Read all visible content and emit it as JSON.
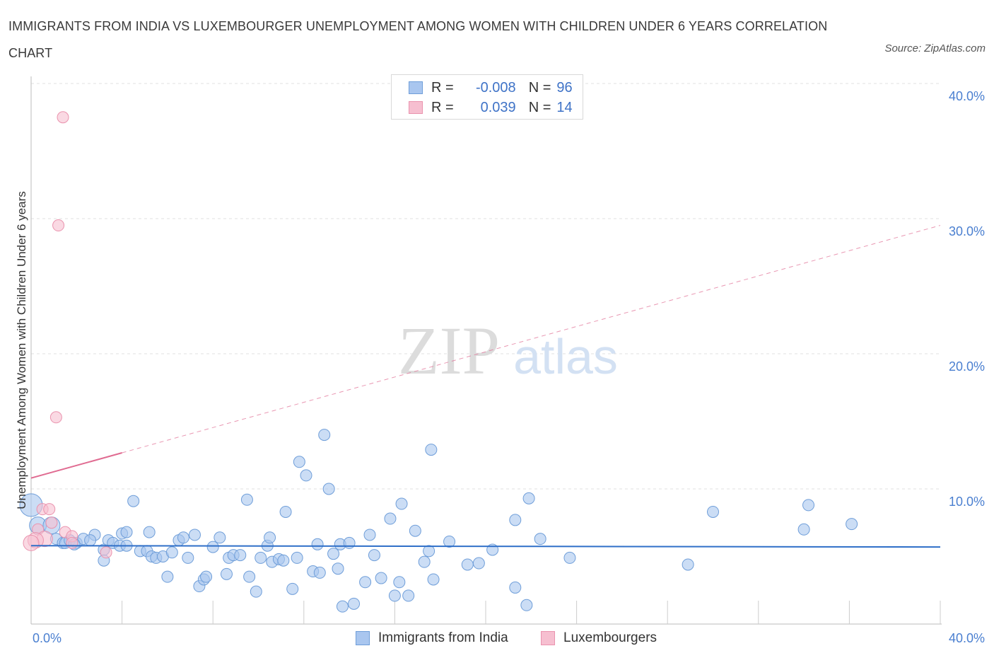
{
  "title": "IMMIGRANTS FROM INDIA VS LUXEMBOURGER UNEMPLOYMENT AMONG WOMEN WITH CHILDREN UNDER 6 YEARS CORRELATION CHART",
  "source": "Source: ZipAtlas.com",
  "watermark": {
    "zip": "ZIP",
    "atlas": "atlas"
  },
  "legend": {
    "rows": [
      {
        "r_label": "R =",
        "r_value": "-0.008",
        "n_label": "N =",
        "n_value": "96"
      },
      {
        "r_label": "R =",
        "r_value": "0.039",
        "n_label": "N =",
        "n_value": "14"
      }
    ]
  },
  "bottom_legend": {
    "series1": "Immigrants from India",
    "series2": "Luxembourgers"
  },
  "colors": {
    "india_fill": "#a9c6ef",
    "india_stroke": "#6f9ed9",
    "india_line": "#2f6fc8",
    "lux_fill": "#f6bfd0",
    "lux_stroke": "#ea93ae",
    "lux_line": "#e06b91",
    "grid": "#e2e2e2",
    "axis_text": "#4a7fd0"
  },
  "chart_data": {
    "type": "scatter",
    "title": "IMMIGRANTS FROM INDIA VS LUXEMBOURGER UNEMPLOYMENT AMONG WOMEN WITH CHILDREN UNDER 6 YEARS CORRELATION CHART",
    "xlabel": "",
    "ylabel": "Unemployment Among Women with Children Under 6 years",
    "xlim": [
      0,
      40
    ],
    "ylim": [
      0,
      40
    ],
    "x_tick_labels": [
      "0.0%",
      "40.0%"
    ],
    "y_tick_labels": [
      "10.0%",
      "20.0%",
      "30.0%",
      "40.0%"
    ],
    "y_ticks": [
      10,
      20,
      30,
      40
    ],
    "series": [
      {
        "name": "Immigrants from India",
        "r": -0.008,
        "n": 96,
        "trend": {
          "x0": 0,
          "y0": 5.8,
          "x1": 40,
          "y1": 5.7
        },
        "points": [
          [
            0.0,
            8.8
          ],
          [
            0.3,
            7.3
          ],
          [
            0.9,
            7.3
          ],
          [
            1.1,
            6.3
          ],
          [
            1.4,
            6.0
          ],
          [
            1.5,
            6.0
          ],
          [
            1.7,
            6.2
          ],
          [
            2.0,
            6.0
          ],
          [
            2.3,
            6.3
          ],
          [
            2.8,
            6.6
          ],
          [
            3.2,
            5.5
          ],
          [
            3.2,
            4.7
          ],
          [
            3.4,
            6.2
          ],
          [
            3.6,
            6.0
          ],
          [
            3.9,
            5.8
          ],
          [
            4.0,
            6.7
          ],
          [
            4.2,
            6.8
          ],
          [
            4.5,
            9.1
          ],
          [
            4.8,
            5.4
          ],
          [
            5.1,
            5.4
          ],
          [
            5.2,
            6.8
          ],
          [
            5.3,
            5.0
          ],
          [
            5.5,
            4.9
          ],
          [
            5.8,
            5.0
          ],
          [
            6.0,
            3.5
          ],
          [
            6.2,
            5.3
          ],
          [
            6.5,
            6.2
          ],
          [
            6.7,
            6.4
          ],
          [
            6.9,
            4.9
          ],
          [
            7.2,
            6.6
          ],
          [
            7.4,
            2.8
          ],
          [
            7.6,
            3.3
          ],
          [
            7.7,
            3.5
          ],
          [
            8.0,
            5.7
          ],
          [
            8.3,
            6.4
          ],
          [
            8.6,
            3.7
          ],
          [
            8.7,
            4.9
          ],
          [
            8.9,
            5.1
          ],
          [
            9.2,
            5.1
          ],
          [
            9.5,
            9.2
          ],
          [
            9.6,
            3.5
          ],
          [
            9.9,
            2.4
          ],
          [
            10.1,
            4.9
          ],
          [
            10.4,
            5.8
          ],
          [
            10.5,
            6.4
          ],
          [
            10.6,
            4.6
          ],
          [
            10.9,
            4.8
          ],
          [
            11.1,
            4.7
          ],
          [
            11.2,
            8.3
          ],
          [
            11.5,
            2.6
          ],
          [
            11.7,
            4.9
          ],
          [
            11.8,
            12.0
          ],
          [
            12.1,
            11.0
          ],
          [
            12.4,
            3.9
          ],
          [
            12.6,
            5.9
          ],
          [
            12.7,
            3.8
          ],
          [
            12.9,
            14.0
          ],
          [
            13.1,
            10.0
          ],
          [
            13.3,
            5.2
          ],
          [
            13.5,
            4.1
          ],
          [
            13.6,
            5.9
          ],
          [
            13.7,
            1.3
          ],
          [
            14.0,
            6.0
          ],
          [
            14.2,
            1.5
          ],
          [
            14.7,
            3.1
          ],
          [
            14.9,
            6.6
          ],
          [
            15.1,
            5.1
          ],
          [
            15.4,
            3.4
          ],
          [
            15.8,
            7.8
          ],
          [
            16.0,
            2.1
          ],
          [
            16.2,
            3.1
          ],
          [
            16.3,
            8.9
          ],
          [
            16.6,
            2.1
          ],
          [
            16.9,
            6.9
          ],
          [
            17.3,
            4.6
          ],
          [
            17.5,
            5.4
          ],
          [
            17.6,
            12.9
          ],
          [
            17.7,
            3.3
          ],
          [
            18.4,
            6.1
          ],
          [
            19.2,
            4.4
          ],
          [
            19.7,
            4.5
          ],
          [
            20.3,
            5.5
          ],
          [
            21.3,
            7.7
          ],
          [
            21.3,
            2.7
          ],
          [
            21.8,
            1.4
          ],
          [
            21.9,
            9.3
          ],
          [
            22.4,
            6.3
          ],
          [
            23.7,
            4.9
          ],
          [
            28.9,
            4.4
          ],
          [
            30.0,
            8.3
          ],
          [
            34.0,
            7.0
          ],
          [
            34.2,
            8.8
          ],
          [
            36.1,
            7.4
          ],
          [
            4.2,
            5.8
          ],
          [
            2.6,
            6.2
          ],
          [
            1.9,
            5.9
          ]
        ]
      },
      {
        "name": "Luxembourgers",
        "r": 0.039,
        "n": 14,
        "trend": {
          "x0": 0,
          "y0": 10.8,
          "x1": 40,
          "y1": 29.5,
          "solid_until_x": 4.0
        },
        "points": [
          [
            1.4,
            37.5
          ],
          [
            1.2,
            29.5
          ],
          [
            1.1,
            15.3
          ],
          [
            0.5,
            8.5
          ],
          [
            0.8,
            8.5
          ],
          [
            0.3,
            7.0
          ],
          [
            0.9,
            7.5
          ],
          [
            1.5,
            6.8
          ],
          [
            1.8,
            6.5
          ],
          [
            0.6,
            6.3
          ],
          [
            0.2,
            6.2
          ],
          [
            0.0,
            6.0
          ],
          [
            1.8,
            6.0
          ],
          [
            3.3,
            5.3
          ]
        ]
      }
    ]
  }
}
